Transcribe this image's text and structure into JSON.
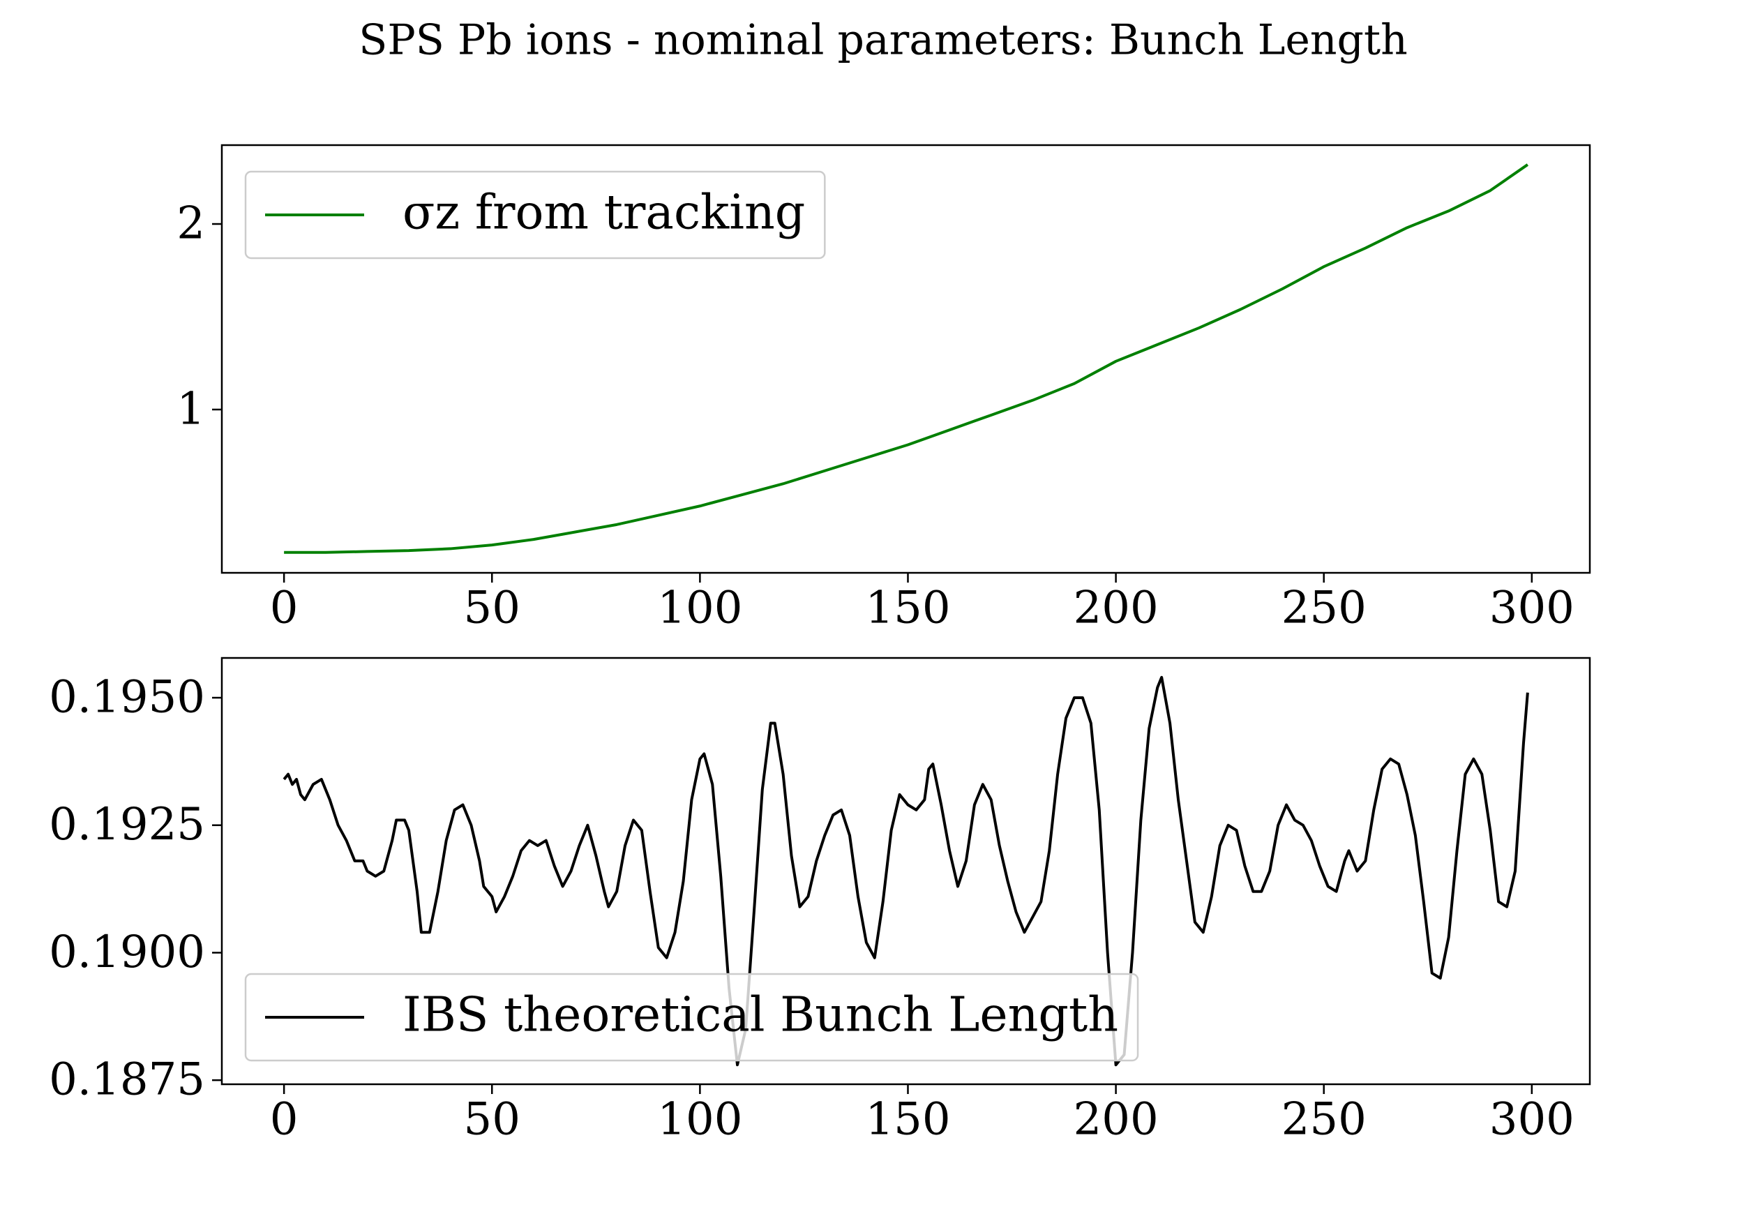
{
  "title": "SPS Pb ions - nominal parameters: Bunch Length",
  "chart_data": [
    {
      "type": "line",
      "x": [
        0,
        10,
        20,
        30,
        40,
        50,
        60,
        70,
        80,
        90,
        100,
        110,
        120,
        130,
        140,
        150,
        160,
        170,
        180,
        190,
        200,
        210,
        220,
        230,
        240,
        250,
        260,
        270,
        280,
        290,
        299
      ],
      "series": [
        {
          "name": "σz from tracking",
          "color": "#008000",
          "values": [
            0.23,
            0.23,
            0.235,
            0.24,
            0.25,
            0.27,
            0.3,
            0.34,
            0.38,
            0.43,
            0.48,
            0.54,
            0.6,
            0.67,
            0.74,
            0.81,
            0.89,
            0.97,
            1.05,
            1.14,
            1.26,
            1.35,
            1.44,
            1.54,
            1.65,
            1.77,
            1.87,
            1.98,
            2.07,
            2.18,
            2.32
          ]
        }
      ],
      "xlim": [
        -14.95,
        313.95
      ],
      "ylim": [
        0.12,
        2.425
      ],
      "xticks": [
        0,
        50,
        100,
        150,
        200,
        250,
        300
      ],
      "yticks": [
        1,
        2
      ],
      "legend": "upper left",
      "grid": false
    },
    {
      "type": "line",
      "x": [
        0,
        1,
        2,
        3,
        4,
        5,
        7,
        9,
        11,
        13,
        15,
        17,
        19,
        20,
        22,
        24,
        26,
        27,
        29,
        30,
        32,
        33,
        35,
        37,
        39,
        41,
        43,
        45,
        47,
        48,
        50,
        51,
        53,
        55,
        57,
        59,
        61,
        63,
        65,
        67,
        69,
        71,
        73,
        75,
        77,
        78,
        80,
        82,
        84,
        86,
        88,
        90,
        92,
        94,
        96,
        98,
        100,
        101,
        103,
        105,
        107,
        109,
        111,
        113,
        115,
        117,
        118,
        120,
        122,
        124,
        126,
        128,
        130,
        132,
        134,
        136,
        138,
        140,
        142,
        144,
        146,
        148,
        150,
        152,
        154,
        155,
        156,
        158,
        160,
        162,
        164,
        166,
        168,
        170,
        172,
        174,
        176,
        178,
        180,
        182,
        184,
        186,
        188,
        190,
        192,
        194,
        196,
        198,
        200,
        202,
        204,
        206,
        208,
        210,
        211,
        213,
        215,
        217,
        219,
        221,
        223,
        225,
        227,
        229,
        231,
        233,
        235,
        237,
        239,
        241,
        243,
        245,
        247,
        249,
        251,
        253,
        255,
        256,
        258,
        260,
        262,
        264,
        266,
        268,
        270,
        272,
        274,
        276,
        278,
        280,
        282,
        284,
        286,
        288,
        290,
        292,
        294,
        296,
        298,
        299
      ],
      "series": [
        {
          "name": "IBS theoretical Bunch Length",
          "color": "#000000",
          "values": [
            0.1934,
            0.1935,
            0.1933,
            0.1934,
            0.1931,
            0.193,
            0.1933,
            0.1934,
            0.193,
            0.1925,
            0.1922,
            0.1918,
            0.1918,
            0.1916,
            0.1915,
            0.1916,
            0.1922,
            0.1926,
            0.1926,
            0.1924,
            0.1912,
            0.1904,
            0.1904,
            0.1912,
            0.1922,
            0.1928,
            0.1929,
            0.1925,
            0.1918,
            0.1913,
            0.1911,
            0.1908,
            0.1911,
            0.1915,
            0.192,
            0.1922,
            0.1921,
            0.1922,
            0.1917,
            0.1913,
            0.1916,
            0.1921,
            0.1925,
            0.1919,
            0.1912,
            0.1909,
            0.1912,
            0.1921,
            0.1926,
            0.1924,
            0.1912,
            0.1901,
            0.1899,
            0.1904,
            0.1914,
            0.193,
            0.1938,
            0.1939,
            0.1933,
            0.1915,
            0.1893,
            0.1878,
            0.1885,
            0.1908,
            0.1932,
            0.1945,
            0.1945,
            0.1935,
            0.1919,
            0.1909,
            0.1911,
            0.1918,
            0.1923,
            0.1927,
            0.1928,
            0.1923,
            0.1911,
            0.1902,
            0.1899,
            0.191,
            0.1924,
            0.1931,
            0.1929,
            0.1928,
            0.193,
            0.1936,
            0.1937,
            0.1929,
            0.192,
            0.1913,
            0.1918,
            0.1929,
            0.1933,
            0.193,
            0.1921,
            0.1914,
            0.1908,
            0.1904,
            0.1907,
            0.191,
            0.192,
            0.1935,
            0.1946,
            0.195,
            0.195,
            0.1945,
            0.1928,
            0.19,
            0.1878,
            0.188,
            0.19,
            0.1926,
            0.1944,
            0.1952,
            0.1954,
            0.1945,
            0.193,
            0.1918,
            0.1906,
            0.1904,
            0.1911,
            0.1921,
            0.1925,
            0.1924,
            0.1917,
            0.1912,
            0.1912,
            0.1916,
            0.1925,
            0.1929,
            0.1926,
            0.1925,
            0.1922,
            0.1917,
            0.1913,
            0.1912,
            0.1918,
            0.192,
            0.1916,
            0.1918,
            0.1928,
            0.1936,
            0.1938,
            0.1937,
            0.1931,
            0.1923,
            0.191,
            0.1896,
            0.1895,
            0.1903,
            0.192,
            0.1935,
            0.1938,
            0.1935,
            0.1924,
            0.191,
            0.1909,
            0.1916,
            0.1941,
            0.1951
          ]
        }
      ],
      "xlim": [
        -14.95,
        313.95
      ],
      "ylim": [
        0.18742,
        0.19578
      ],
      "xticks": [
        0,
        50,
        100,
        150,
        200,
        250,
        300
      ],
      "yticks": [
        0.1875,
        {
          "value": 0.19,
          "label": "0.1900"
        },
        0.1925,
        {
          "value": 0.195,
          "label": "0.1950"
        }
      ],
      "legend": "lower left",
      "grid": false
    }
  ]
}
